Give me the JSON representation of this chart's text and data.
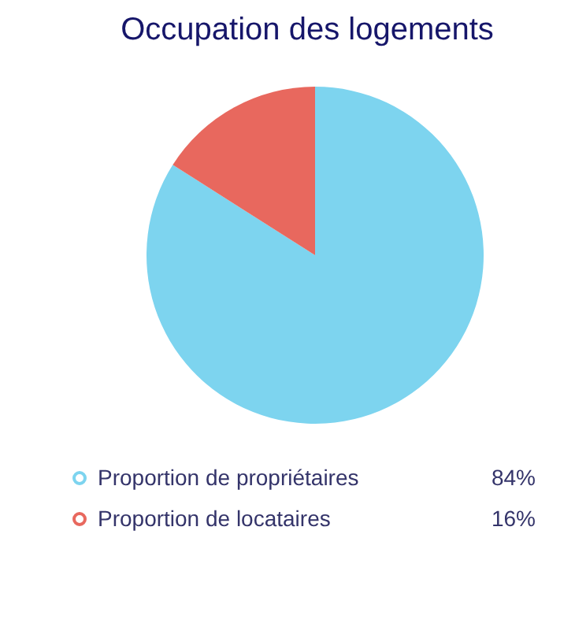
{
  "chart_data": {
    "type": "pie",
    "title": "Occupation des logements",
    "categories": [
      "Proportion de propriétaires",
      "Proportion de locataires"
    ],
    "values": [
      84,
      16
    ],
    "colors": [
      "#7dd4ef",
      "#e8685e"
    ],
    "value_labels": [
      "84%",
      "16%"
    ],
    "legend": "bottom"
  }
}
